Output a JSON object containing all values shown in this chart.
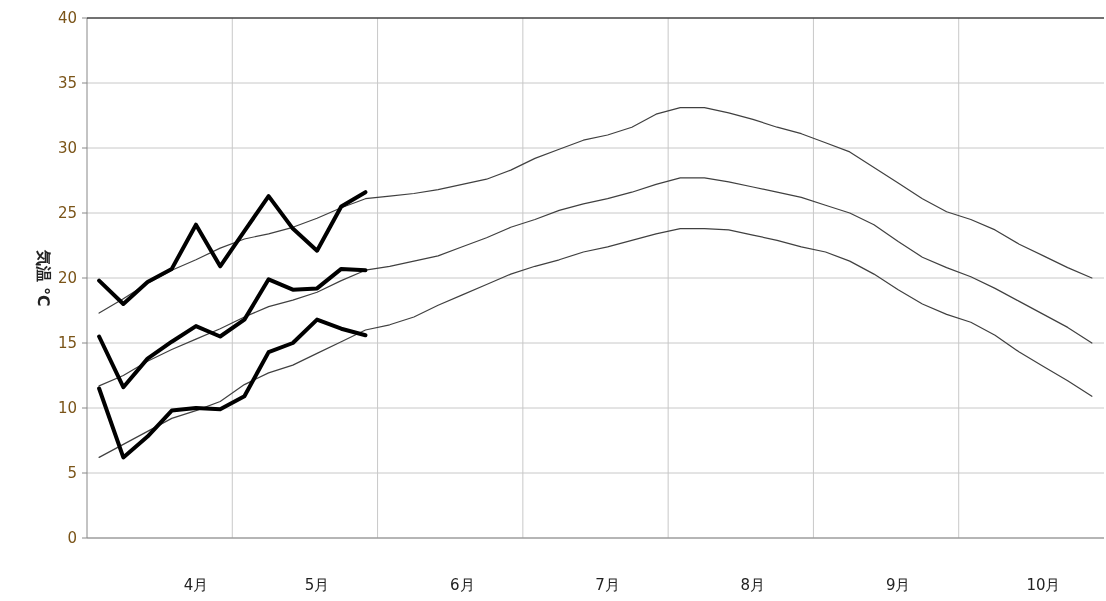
{
  "chart_data": {
    "type": "line",
    "ylabel": "気温 ℃",
    "categories": [
      null,
      null,
      null,
      null,
      "4月",
      null,
      null,
      null,
      null,
      "5月",
      null,
      null,
      null,
      null,
      null,
      "6月",
      null,
      null,
      null,
      null,
      null,
      "7月",
      null,
      null,
      null,
      null,
      null,
      "8月",
      null,
      null,
      null,
      null,
      null,
      "9月",
      null,
      null,
      null,
      null,
      null,
      "10月",
      null,
      null
    ],
    "series": [
      {
        "color": "#404040",
        "values": [
          17.3,
          18.4,
          19.6,
          20.6,
          21.4,
          22.3,
          23.0,
          23.4,
          23.9,
          24.6,
          25.4,
          26.1,
          26.3,
          26.5,
          26.8,
          27.2,
          27.6,
          28.3,
          29.2,
          29.9,
          30.6,
          31.0,
          31.6,
          32.6,
          33.1,
          33.1,
          32.7,
          32.2,
          31.6,
          31.1,
          30.4,
          29.7,
          28.5,
          27.3,
          26.1,
          25.1,
          24.5,
          23.7,
          22.6,
          21.7,
          20.8,
          20.0
        ]
      },
      {
        "color": "#404040",
        "values": [
          11.7,
          12.5,
          13.6,
          14.5,
          15.3,
          16.1,
          17.0,
          17.8,
          18.3,
          18.9,
          19.8,
          20.6,
          20.9,
          21.3,
          21.7,
          22.4,
          23.1,
          23.9,
          24.5,
          25.2,
          25.7,
          26.1,
          26.6,
          27.2,
          27.7,
          27.7,
          27.4,
          27.0,
          26.6,
          26.2,
          25.6,
          25.0,
          24.1,
          22.8,
          21.6,
          20.8,
          20.1,
          19.2,
          18.2,
          17.2,
          16.2,
          15.0
        ]
      },
      {
        "color": "#404040",
        "values": [
          6.2,
          7.2,
          8.2,
          9.2,
          9.8,
          10.5,
          11.8,
          12.7,
          13.3,
          14.2,
          15.1,
          16.0,
          16.4,
          17.0,
          17.9,
          18.7,
          19.5,
          20.3,
          20.9,
          21.4,
          22.0,
          22.4,
          22.9,
          23.4,
          23.8,
          23.8,
          23.7,
          23.3,
          22.9,
          22.4,
          22.0,
          21.3,
          20.3,
          19.1,
          18.0,
          17.2,
          16.6,
          15.6,
          14.3,
          13.2,
          12.1,
          10.9
        ]
      },
      {
        "color": "#000000",
        "values": [
          19.8,
          18.0,
          19.7,
          20.7,
          24.1,
          20.9,
          23.6,
          26.3,
          23.8,
          22.1,
          25.5,
          26.6,
          null,
          null,
          null,
          null,
          null,
          null,
          null,
          null,
          null,
          null,
          null,
          null,
          null,
          null,
          null,
          null,
          null,
          null,
          null,
          null,
          null,
          null,
          null,
          null,
          null,
          null,
          null,
          null,
          null,
          null
        ]
      },
      {
        "color": "#000000",
        "values": [
          15.5,
          11.6,
          13.8,
          15.1,
          16.3,
          15.5,
          16.8,
          19.9,
          19.1,
          19.2,
          20.7,
          20.6,
          null,
          null,
          null,
          null,
          null,
          null,
          null,
          null,
          null,
          null,
          null,
          null,
          null,
          null,
          null,
          null,
          null,
          null,
          null,
          null,
          null,
          null,
          null,
          null,
          null,
          null,
          null,
          null,
          null,
          null
        ]
      },
      {
        "color": "#000000",
        "values": [
          11.5,
          6.2,
          7.8,
          9.8,
          10.0,
          9.9,
          10.9,
          14.3,
          15.0,
          16.8,
          16.1,
          15.6,
          null,
          null,
          null,
          null,
          null,
          null,
          null,
          null,
          null,
          null,
          null,
          null,
          null,
          null,
          null,
          null,
          null,
          null,
          null,
          null,
          null,
          null,
          null,
          null,
          null,
          null,
          null,
          null,
          null,
          null
        ]
      }
    ],
    "ylim": [
      0,
      40
    ],
    "yticks": [
      0,
      5,
      10,
      15,
      20,
      25,
      30,
      35,
      40
    ],
    "grid": true,
    "marker": "none",
    "line_style": "solid"
  }
}
